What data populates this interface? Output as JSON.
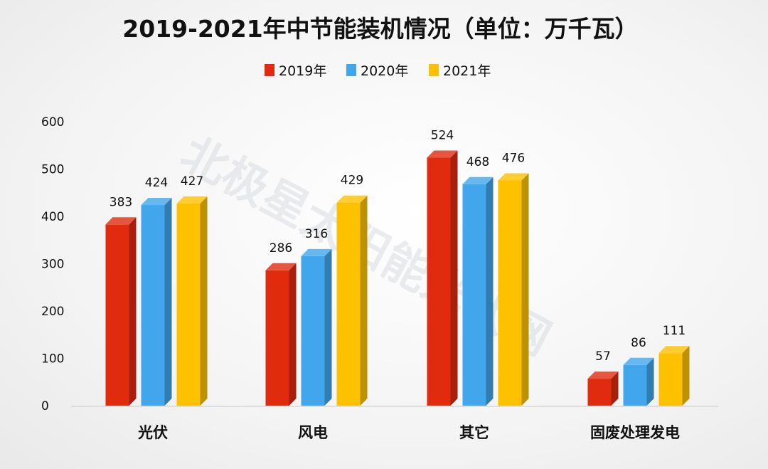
{
  "chart_data": {
    "type": "bar",
    "title": "2019-2021年中节能装机情况（单位：万千瓦）",
    "categories": [
      "光伏",
      "风电",
      "其它",
      "固废处理发电"
    ],
    "series": [
      {
        "name": "2019年",
        "values": [
          383,
          286,
          524,
          57
        ]
      },
      {
        "name": "2020年",
        "values": [
          424,
          316,
          468,
          86
        ]
      },
      {
        "name": "2021年",
        "values": [
          427,
          429,
          476,
          111
        ]
      }
    ],
    "ylim": [
      0,
      600
    ],
    "yticks": [
      0,
      100,
      200,
      300,
      400,
      500,
      600
    ],
    "legend_position": "top-center",
    "grid": false,
    "colors": [
      "#e02b0e",
      "#41a6ec",
      "#fdc100"
    ],
    "watermark": "北极星太阳能光伏网"
  }
}
